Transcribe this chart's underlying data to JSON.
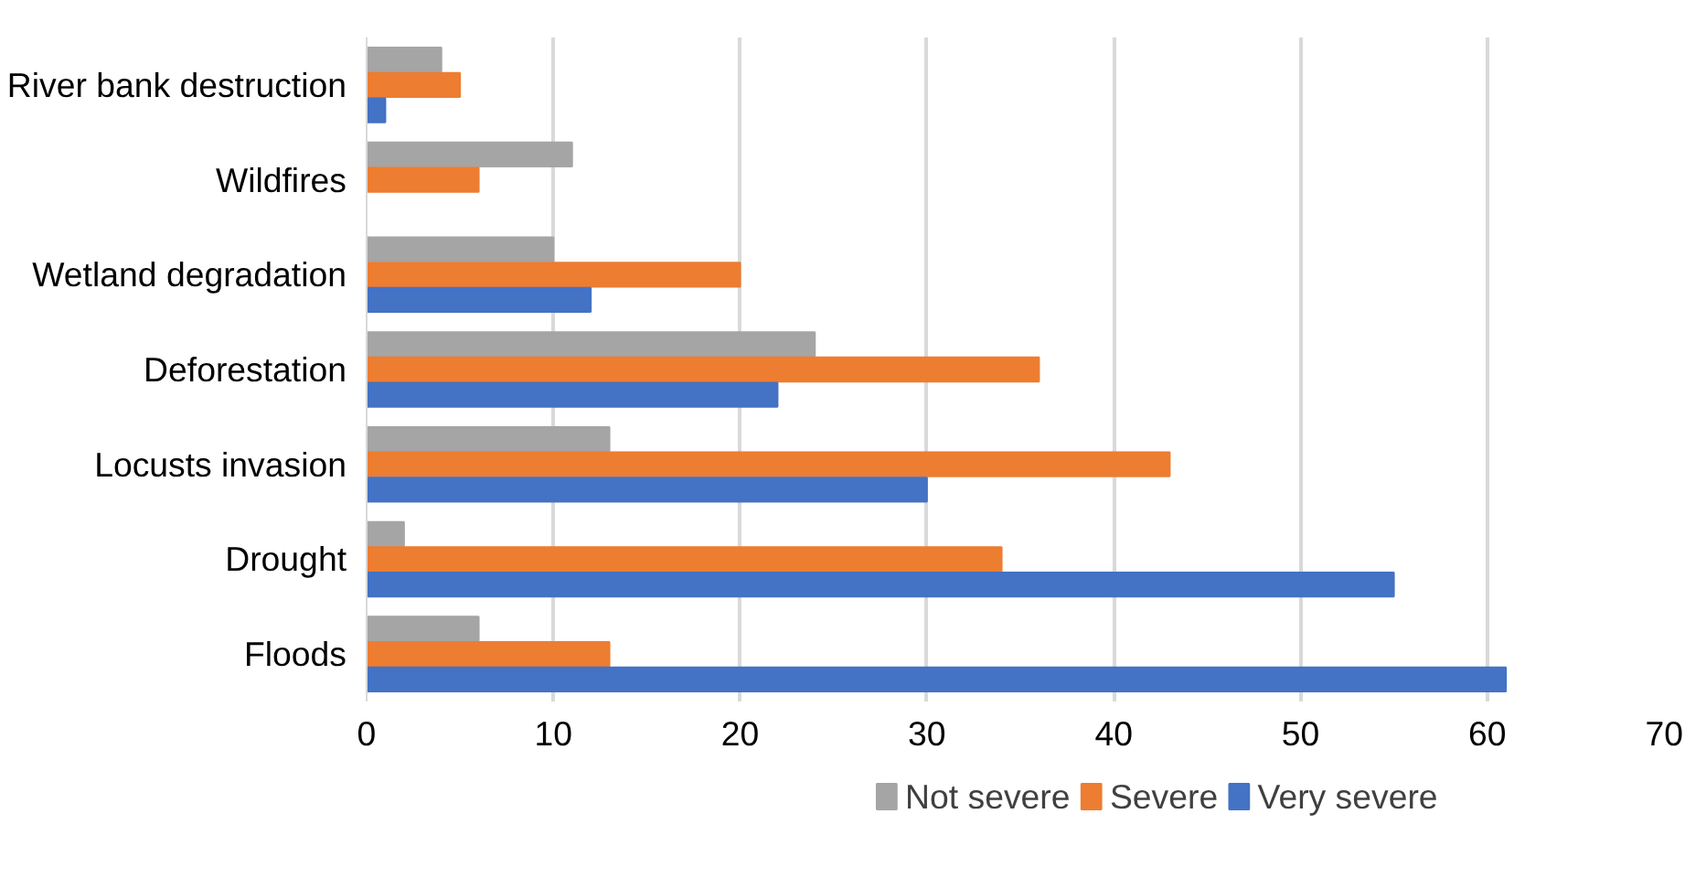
{
  "chart_data": {
    "type": "bar",
    "orientation": "horizontal",
    "categories": [
      "River bank destruction",
      "Wildfires",
      "Wetland degradation",
      "Deforestation",
      "Locusts invasion",
      "Drought",
      "Floods"
    ],
    "series": [
      {
        "name": "Not severe",
        "color": "#a5a5a5",
        "values": [
          4,
          11,
          10,
          24,
          13,
          2,
          6
        ]
      },
      {
        "name": "Severe",
        "color": "#ed7d31",
        "values": [
          5,
          6,
          20,
          36,
          43,
          34,
          13
        ]
      },
      {
        "name": "Very severe",
        "color": "#4472c4",
        "values": [
          1,
          null,
          12,
          22,
          30,
          55,
          61
        ]
      }
    ],
    "xlim": [
      0,
      70
    ],
    "xticks": [
      0,
      10,
      20,
      30,
      40,
      50,
      60,
      70
    ],
    "grid": "x",
    "legend": "bottom"
  }
}
